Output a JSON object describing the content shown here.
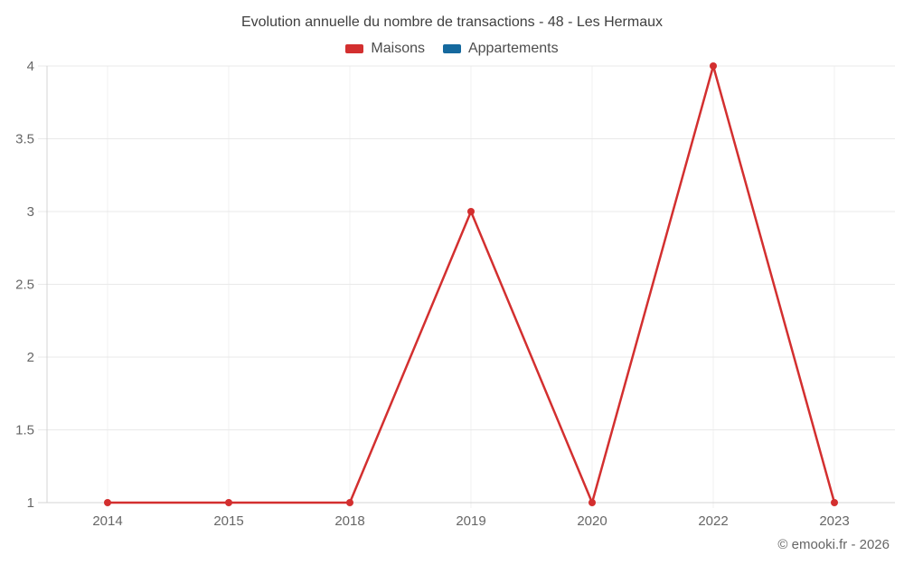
{
  "chart_data": {
    "type": "line",
    "title": "Evolution annuelle du nombre de transactions - 48 - Les Hermaux",
    "categories": [
      "2014",
      "2015",
      "2018",
      "2019",
      "2020",
      "2022",
      "2023"
    ],
    "series": [
      {
        "name": "Maisons",
        "color": "#d32f2f",
        "values": [
          1,
          1,
          1,
          3,
          1,
          4,
          1
        ]
      },
      {
        "name": "Appartements",
        "color": "#15699e",
        "values": []
      }
    ],
    "xlabel": "",
    "ylabel": "",
    "ylim": [
      1,
      4
    ],
    "ytick_step": 0.5,
    "grid": true,
    "legend_position": "top",
    "marker": "circle",
    "credit": "© emooki.fr - 2026"
  },
  "colors": {
    "axis_line": "#d4d4d4",
    "h_gridline": "#e9e9e9",
    "v_gridline": "#f0f0f0",
    "title_text": "#3f3f3f",
    "legend_text": "#4d4d4d",
    "axis_text": "#666666"
  }
}
